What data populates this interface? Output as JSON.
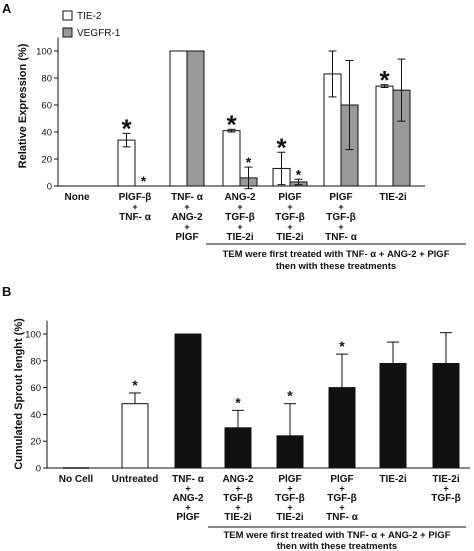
{
  "chart_data": [
    {
      "panel": "A",
      "type": "bar",
      "ylabel": "Relative Expression (%)",
      "ylim": [
        0,
        110
      ],
      "yticks": [
        0,
        20,
        40,
        60,
        80,
        100
      ],
      "legend_placement": "top-left",
      "categories": [
        [
          "None"
        ],
        [
          "PlGF-β",
          "+",
          "TNF- α"
        ],
        [
          "TNF- α",
          "+",
          "ANG-2",
          "+",
          "PlGF"
        ],
        [
          "ANG-2",
          "+",
          "TGF-β",
          "+",
          "TIE-2i"
        ],
        [
          "PlGF",
          "+",
          "TGF-β",
          "+",
          "TIE-2i"
        ],
        [
          "PlGF",
          "+",
          "TGF-β",
          "+",
          "TNF- α"
        ],
        [
          "TIE-2i"
        ]
      ],
      "series": [
        {
          "name": "TIE-2",
          "color": "#ffffff",
          "values": [
            0,
            34,
            100,
            41,
            13,
            83,
            74
          ],
          "errors": [
            0,
            5,
            0,
            1,
            12,
            17,
            1
          ],
          "stars": [
            "",
            "big",
            "",
            "big",
            "big",
            "",
            "big"
          ]
        },
        {
          "name": "VEGFR-1",
          "color": "#999999",
          "values": [
            0,
            0,
            100,
            6,
            3,
            60,
            71
          ],
          "errors": [
            0,
            0,
            0,
            8,
            2,
            33,
            23
          ],
          "stars": [
            "",
            "small",
            "",
            "small",
            "small",
            "",
            ""
          ]
        }
      ],
      "bracket_text": [
        "TEM were first treated with TNF- α + ANG-2 + PlGF",
        "then with these treatments"
      ]
    },
    {
      "panel": "B",
      "type": "bar",
      "ylabel": "Cumulated Sprout lenght (%)",
      "ylim": [
        0,
        110
      ],
      "yticks": [
        0,
        20,
        40,
        60,
        80,
        100
      ],
      "categories": [
        [
          "No Cell"
        ],
        [
          "Untreated"
        ],
        [
          "TNF- α",
          "+",
          "ANG-2",
          "+",
          "PlGF"
        ],
        [
          "ANG-2",
          "+",
          "TGF-β",
          "+",
          "TIE-2i"
        ],
        [
          "PlGF",
          "+",
          "TGF-β",
          "+",
          "TIE-2i"
        ],
        [
          "PlGF",
          "+",
          "TGF-β",
          "+",
          "TNF- α"
        ],
        [
          "TIE-2i"
        ],
        [
          "TIE-2i",
          "+",
          "TGF-β"
        ]
      ],
      "values": [
        0,
        48,
        100,
        30,
        24,
        60,
        78,
        78
      ],
      "errors": [
        0,
        8,
        0,
        13,
        24,
        25,
        16,
        23
      ],
      "colors": [
        "#ffffff",
        "#ffffff",
        "#111111",
        "#111111",
        "#111111",
        "#111111",
        "#111111",
        "#111111"
      ],
      "stars": [
        false,
        true,
        false,
        true,
        true,
        true,
        false,
        false
      ],
      "bracket_text": [
        "TEM were first treated with TNF- α + ANG-2 + PlGF",
        "then with these treatments"
      ]
    }
  ]
}
